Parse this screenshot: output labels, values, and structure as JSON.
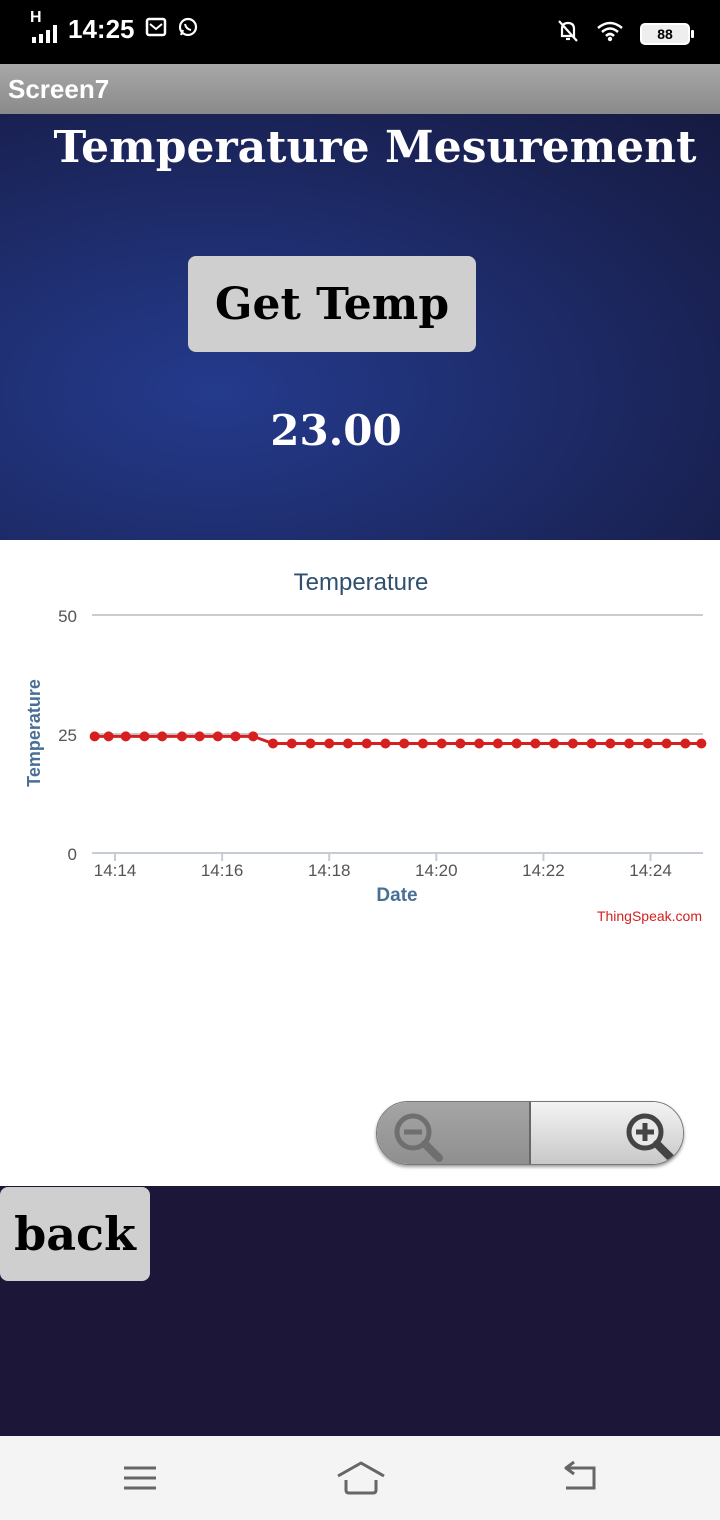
{
  "status_bar": {
    "network": "H",
    "time": "14:25",
    "battery": "88"
  },
  "app": {
    "screen_title": "Screen7"
  },
  "main": {
    "heading": "Temperature Mesurement",
    "get_temp_label": "Get Temp",
    "temperature_value": "23.00",
    "back_label": "back"
  },
  "chart_data": {
    "type": "line",
    "title": "Temperature",
    "xlabel": "Date",
    "ylabel": "Temperature",
    "ylim": [
      0,
      50
    ],
    "yticks": [
      0,
      25,
      50
    ],
    "xticks": [
      "14:14",
      "14:16",
      "14:18",
      "14:20",
      "14:22",
      "14:24"
    ],
    "xlim_minutes": [
      13.57,
      24.98
    ],
    "series": [
      {
        "color": "#d62020",
        "x": [
          13.62,
          13.88,
          14.2,
          14.55,
          14.88,
          15.25,
          15.58,
          15.92,
          16.25,
          16.58,
          16.95,
          17.3,
          17.65,
          18.0,
          18.35,
          18.7,
          19.05,
          19.4,
          19.75,
          20.1,
          20.45,
          20.8,
          21.15,
          21.5,
          21.85,
          22.2,
          22.55,
          22.9,
          23.25,
          23.6,
          23.95,
          24.3,
          24.65,
          24.95
        ],
        "y": [
          24.5,
          24.5,
          24.5,
          24.5,
          24.5,
          24.5,
          24.5,
          24.5,
          24.5,
          24.5,
          23.0,
          23.0,
          23.0,
          23.0,
          23.0,
          23.0,
          23.0,
          23.0,
          23.0,
          23.0,
          23.0,
          23.0,
          23.0,
          23.0,
          23.0,
          23.0,
          23.0,
          23.0,
          23.0,
          23.0,
          23.0,
          23.0,
          23.0,
          23.0
        ]
      }
    ],
    "credit": "ThingSpeak.com",
    "grid": true
  },
  "colors": {
    "axis_label": "#4a6f96",
    "title": "#2f4f6f",
    "line": "#d62020",
    "credit": "#d62020"
  },
  "icons": {
    "zoom_out": "zoom-out-icon",
    "zoom_in": "zoom-in-icon",
    "nav_menu": "menu-icon",
    "nav_home": "home-icon",
    "nav_back": "back-icon"
  }
}
